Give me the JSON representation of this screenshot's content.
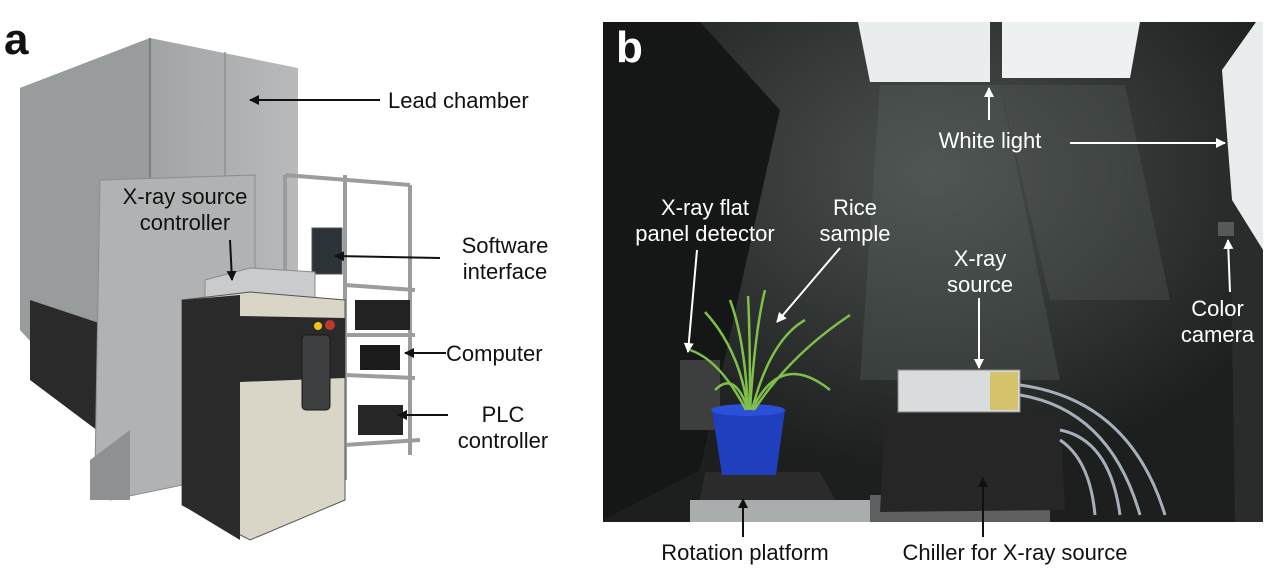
{
  "panel_a": {
    "letter": "a",
    "labels": {
      "lead_chamber": "Lead chamber",
      "xray_source_controller": "X-ray source\ncontroller",
      "software_interface": "Software\ninterface",
      "computer": "Computer",
      "plc_controller": "PLC\ncontroller"
    }
  },
  "panel_b": {
    "letter": "b",
    "labels": {
      "white_light": "White light",
      "flat_panel_detector": "X-ray flat\npanel detector",
      "rice_sample": "Rice\nsample",
      "xray_source": "X-ray\nsource",
      "color_camera": "Color\ncamera",
      "rotation_platform": "Rotation platform",
      "chiller": "Chiller for X-ray source"
    }
  },
  "colors": {
    "dark_label": "#111111",
    "light_label": "#ffffff",
    "chamber_interior": "#1c1f1e",
    "chamber_panel": "#a8aaab",
    "pot": "#1f3fbf",
    "plant": "#7fbf4a"
  }
}
